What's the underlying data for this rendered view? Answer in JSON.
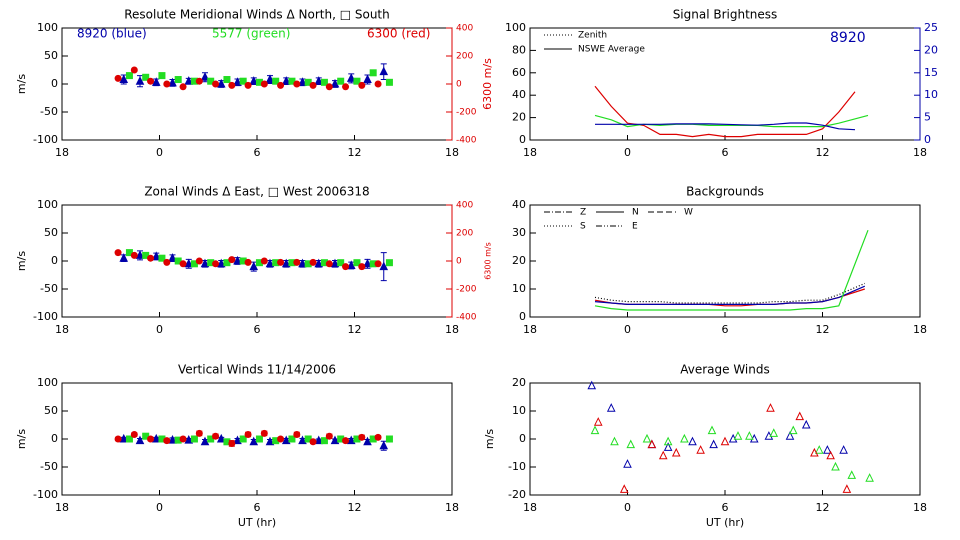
{
  "chart_data": [
    {
      "type": "wind",
      "title": "Resolute Meridional Winds Δ North, □ South",
      "ylabel": "m/s",
      "y2label": "6300 m/s",
      "y2color": "#dd0000",
      "annotations": [
        {
          "text": "8920 (blue)",
          "color": "#0000aa"
        },
        {
          "text": "5577 (green)",
          "color": "#22dd22"
        },
        {
          "text": "6300 (red)",
          "color": "#dd0000"
        }
      ],
      "xlim": [
        -6,
        18
      ],
      "xticks": [
        {
          "value": -6,
          "label": "18"
        },
        0,
        6,
        12,
        18
      ],
      "ylim": [
        -100,
        100
      ],
      "yticks": [
        -100,
        -50,
        0,
        50,
        100
      ],
      "y2lim": [
        -400,
        400
      ],
      "y2ticks": [
        -400,
        -200,
        0,
        200,
        400
      ],
      "series": [
        {
          "color": "#0000aa",
          "marker": "triangle",
          "x": [
            -2.2,
            -1.2,
            -0.2,
            0.8,
            1.8,
            2.8,
            3.8,
            4.8,
            5.8,
            6.8,
            7.8,
            8.8,
            9.8,
            10.8,
            11.8,
            12.8,
            13.8
          ],
          "values": [
            8,
            5,
            3,
            2,
            5,
            12,
            0,
            3,
            5,
            8,
            5,
            3,
            5,
            0,
            10,
            8,
            22
          ],
          "errors": [
            8,
            10,
            6,
            6,
            5,
            8,
            6,
            6,
            6,
            7,
            6,
            6,
            6,
            6,
            8,
            8,
            14
          ]
        },
        {
          "color": "#22dd22",
          "marker": "square",
          "x": [
            -1.85,
            -0.85,
            0.15,
            1.15,
            2.15,
            3.15,
            4.15,
            5.15,
            6.15,
            7.15,
            8.15,
            9.15,
            10.15,
            11.15,
            12.15,
            13.15,
            14.15
          ],
          "values": [
            15,
            12,
            15,
            8,
            5,
            5,
            8,
            5,
            3,
            5,
            5,
            3,
            3,
            5,
            5,
            20,
            3
          ]
        },
        {
          "color": "#dd0000",
          "marker": "circle",
          "axis": "y2",
          "x": [
            -2.55,
            -1.55,
            -0.55,
            0.45,
            1.45,
            2.45,
            3.45,
            4.45,
            5.45,
            6.45,
            7.45,
            8.45,
            9.45,
            10.45,
            11.45,
            12.45,
            13.45
          ],
          "values": [
            40,
            100,
            20,
            0,
            -20,
            20,
            0,
            -10,
            -10,
            0,
            -10,
            0,
            -10,
            -20,
            -20,
            -10,
            0
          ]
        }
      ]
    },
    {
      "type": "line",
      "title": "Signal Brightness",
      "y2color": "#0000aa",
      "annotations": [
        {
          "text": "8920",
          "color": "#0000aa"
        }
      ],
      "legend": [
        {
          "name": "Zenith",
          "dash": "1,2"
        },
        {
          "name": "NSWE Average",
          "dash": ""
        }
      ],
      "xlim": [
        -6,
        18
      ],
      "xticks": [
        {
          "value": -6,
          "label": "18"
        },
        0,
        6,
        12,
        18
      ],
      "ylim": [
        0,
        100
      ],
      "yticks": [
        0,
        20,
        40,
        60,
        80,
        100
      ],
      "y2lim": [
        0,
        25
      ],
      "y2ticks": [
        0,
        5,
        10,
        15,
        20,
        25
      ],
      "series": [
        {
          "color": "#dd0000",
          "x": [
            -2,
            -1,
            0,
            1,
            2,
            3,
            4,
            5,
            6,
            7,
            8,
            9,
            10,
            11,
            12,
            13,
            14
          ],
          "values": [
            48,
            30,
            15,
            13,
            5,
            5,
            3,
            5,
            3,
            3,
            5,
            5,
            5,
            5,
            10,
            25,
            43
          ]
        },
        {
          "color": "#22dd22",
          "x": [
            -2,
            -1,
            0,
            1,
            2,
            3,
            4,
            5,
            6,
            7,
            8,
            9,
            10,
            11,
            12,
            13,
            14.8
          ],
          "values": [
            22,
            18,
            12,
            14,
            13,
            14,
            14,
            13,
            13,
            13,
            13,
            12,
            12,
            12,
            12,
            15,
            22
          ]
        },
        {
          "color": "#0000aa",
          "axis": "y2",
          "x": [
            -2,
            -1,
            0,
            1,
            2,
            3,
            4,
            5,
            6,
            7,
            8,
            9,
            10,
            11,
            12,
            13,
            14
          ],
          "values": [
            3.5,
            3.5,
            3.5,
            3.5,
            3.5,
            3.6,
            3.6,
            3.6,
            3.5,
            3.4,
            3.3,
            3.5,
            3.8,
            3.8,
            3.3,
            2.5,
            2.3
          ]
        }
      ]
    },
    {
      "type": "wind",
      "title": "Zonal Winds Δ East, □ West 2006318",
      "ylabel": "m/s",
      "y2label": "6300 m/s",
      "y2color": "#dd0000",
      "xlim": [
        -6,
        18
      ],
      "xticks": [
        {
          "value": -6,
          "label": "18"
        },
        0,
        6,
        12,
        18
      ],
      "ylim": [
        -100,
        100
      ],
      "yticks": [
        -100,
        -50,
        0,
        50,
        100
      ],
      "y2lim": [
        -400,
        400
      ],
      "y2ticks": [
        -400,
        -200,
        0,
        200,
        400
      ],
      "series": [
        {
          "color": "#0000aa",
          "marker": "triangle",
          "x": [
            -2.2,
            -1.2,
            -0.2,
            0.8,
            1.8,
            2.8,
            3.8,
            4.8,
            5.8,
            6.8,
            7.8,
            8.8,
            9.8,
            10.8,
            11.8,
            12.8,
            13.8
          ],
          "values": [
            5,
            10,
            8,
            5,
            -5,
            -5,
            -5,
            0,
            -10,
            -5,
            -5,
            -5,
            -5,
            -5,
            -8,
            -5,
            -10
          ],
          "errors": [
            6,
            8,
            6,
            6,
            8,
            6,
            6,
            6,
            8,
            6,
            6,
            6,
            6,
            6,
            6,
            8,
            25
          ]
        },
        {
          "color": "#22dd22",
          "marker": "square",
          "x": [
            -1.85,
            -0.85,
            0.15,
            1.15,
            2.15,
            3.15,
            4.15,
            5.15,
            6.15,
            7.15,
            8.15,
            9.15,
            10.15,
            11.15,
            12.15,
            13.15,
            14.15
          ],
          "values": [
            15,
            10,
            5,
            0,
            -5,
            -3,
            -3,
            0,
            -3,
            -3,
            -3,
            -5,
            -3,
            -3,
            -3,
            -5,
            -3
          ]
        },
        {
          "color": "#dd0000",
          "marker": "circle",
          "axis": "y2",
          "x": [
            -2.55,
            -1.55,
            -0.55,
            0.45,
            1.45,
            2.45,
            3.45,
            4.45,
            5.45,
            6.45,
            7.45,
            8.45,
            9.45,
            10.45,
            11.45,
            12.45,
            13.45
          ],
          "values": [
            60,
            40,
            20,
            -10,
            -20,
            0,
            -20,
            10,
            -10,
            0,
            -10,
            -10,
            -10,
            -20,
            -40,
            -40,
            -20
          ]
        }
      ]
    },
    {
      "type": "line",
      "title": "Backgrounds",
      "legend": [
        {
          "name": "Z",
          "dash": "6,2,1,2"
        },
        {
          "name": "N",
          "dash": ""
        },
        {
          "name": "W",
          "dash": "6,3"
        },
        {
          "name": "S",
          "dash": "1,2"
        },
        {
          "name": "E",
          "dash": "6,2,1,2,1,2"
        }
      ],
      "xlim": [
        -6,
        18
      ],
      "xticks": [
        {
          "value": -6,
          "label": "18"
        },
        0,
        6,
        12,
        18
      ],
      "ylim": [
        0,
        40
      ],
      "yticks": [
        0,
        10,
        20,
        30,
        40
      ],
      "series": [
        {
          "color": "#000000",
          "dash": "1,2",
          "x": [
            -2,
            -1,
            0,
            1,
            2,
            3,
            4,
            5,
            6,
            7,
            8,
            9,
            10,
            11,
            12,
            13,
            14.6
          ],
          "values": [
            7,
            6,
            5.5,
            5.5,
            5.5,
            5,
            5,
            5,
            5,
            5,
            5,
            5.5,
            5.5,
            6,
            6,
            8,
            12
          ]
        },
        {
          "color": "#dd0000",
          "x": [
            -2,
            -1,
            0,
            1,
            2,
            3,
            4,
            5,
            6,
            7,
            8,
            9,
            10,
            11,
            12,
            13,
            14.6
          ],
          "values": [
            6,
            5,
            4.5,
            4.5,
            4.5,
            4.5,
            4.5,
            4.5,
            4,
            4,
            4.5,
            4.5,
            5,
            5,
            5.5,
            7,
            10
          ]
        },
        {
          "color": "#0000aa",
          "x": [
            -2,
            -1,
            0,
            1,
            2,
            3,
            4,
            5,
            6,
            7,
            8,
            9,
            10,
            11,
            12,
            13,
            14.6
          ],
          "values": [
            5.5,
            5,
            4.5,
            4.5,
            4.5,
            4.5,
            4.5,
            4.5,
            4.5,
            4.5,
            4.5,
            4.5,
            5,
            5,
            5.5,
            7,
            11
          ]
        },
        {
          "color": "#22dd22",
          "x": [
            -2,
            -1,
            0,
            1,
            2,
            3,
            4,
            5,
            6,
            7,
            8,
            9,
            10,
            11,
            12,
            13,
            14.8
          ],
          "values": [
            4,
            3,
            2.5,
            2.5,
            2.5,
            2.5,
            2.5,
            2.5,
            2.5,
            2.5,
            2.5,
            2.5,
            2.5,
            3,
            3,
            4,
            31
          ]
        }
      ]
    },
    {
      "type": "wind",
      "title": "Vertical Winds 11/14/2006",
      "ylabel": "m/s",
      "xlabel": "UT (hr)",
      "xlim": [
        -6,
        18
      ],
      "xticks": [
        {
          "value": -6,
          "label": "18"
        },
        0,
        6,
        12,
        18
      ],
      "ylim": [
        -100,
        100
      ],
      "yticks": [
        -100,
        -50,
        0,
        50,
        100
      ],
      "series": [
        {
          "color": "#0000aa",
          "marker": "triangle",
          "x": [
            -2.2,
            -1.2,
            -0.2,
            0.8,
            1.8,
            2.8,
            3.8,
            4.8,
            5.8,
            6.8,
            7.8,
            8.8,
            9.8,
            10.8,
            11.8,
            12.8,
            13.8
          ],
          "values": [
            0,
            -3,
            0,
            -2,
            -2,
            -5,
            0,
            -3,
            -5,
            -5,
            -3,
            -3,
            -3,
            -3,
            -3,
            -5,
            -12
          ],
          "errors": [
            3,
            4,
            3,
            4,
            3,
            4,
            3,
            4,
            4,
            4,
            4,
            4,
            3,
            3,
            4,
            4,
            8
          ]
        },
        {
          "color": "#22dd22",
          "marker": "square",
          "x": [
            -1.85,
            -0.85,
            0.15,
            1.15,
            2.15,
            3.15,
            4.15,
            5.15,
            6.15,
            7.15,
            8.15,
            9.15,
            10.15,
            11.15,
            12.15,
            13.15,
            14.15
          ],
          "values": [
            0,
            5,
            0,
            -2,
            0,
            0,
            -5,
            0,
            0,
            -3,
            0,
            0,
            -3,
            0,
            0,
            0,
            0
          ]
        },
        {
          "color": "#dd0000",
          "marker": "circle",
          "x": [
            -2.55,
            -1.55,
            -0.55,
            0.45,
            1.45,
            2.45,
            3.45,
            4.45,
            5.45,
            6.45,
            7.45,
            8.45,
            9.45,
            10.45,
            11.45,
            12.45,
            13.45
          ],
          "values": [
            0,
            8,
            0,
            -3,
            0,
            10,
            5,
            -8,
            8,
            10,
            0,
            8,
            -5,
            5,
            -3,
            3,
            3
          ],
          "errors": [
            3,
            3,
            3,
            3,
            3,
            4,
            4,
            5,
            4,
            4,
            3,
            4,
            3,
            4,
            3,
            4,
            3
          ]
        }
      ]
    },
    {
      "type": "scatter",
      "title": "Average Winds",
      "ylabel": "m/s",
      "xlabel": "UT (hr)",
      "xlim": [
        -6,
        18
      ],
      "xticks": [
        {
          "value": -6,
          "label": "18"
        },
        0,
        6,
        12,
        18
      ],
      "ylim": [
        -20,
        20
      ],
      "yticks": [
        -20,
        -10,
        0,
        10,
        20
      ],
      "series": [
        {
          "color": "#0000aa",
          "marker": "triangle",
          "x": [
            -2.2,
            -1,
            0,
            1.5,
            2.5,
            4,
            5.3,
            6.5,
            7.8,
            8.7,
            10,
            11,
            12.3,
            13.3
          ],
          "values": [
            19,
            11,
            -9,
            -2,
            -3,
            -1,
            -2,
            0,
            0,
            1,
            1,
            5,
            -4,
            -4
          ]
        },
        {
          "color": "#22dd22",
          "marker": "triangle",
          "x": [
            -2,
            -0.8,
            0.2,
            1.2,
            2.5,
            3.5,
            5.2,
            6.8,
            7.5,
            9,
            10.2,
            11.8,
            12.8,
            13.8,
            14.9
          ],
          "values": [
            3,
            -1,
            -2,
            0,
            -1,
            0,
            3,
            1,
            1,
            2,
            3,
            -4,
            -10,
            -13,
            -14
          ]
        },
        {
          "color": "#dd0000",
          "marker": "triangle",
          "x": [
            -1.8,
            -0.2,
            1.5,
            2.2,
            3,
            4.5,
            6,
            8.8,
            10.6,
            11.5,
            12.5,
            13.5
          ],
          "values": [
            6,
            -18,
            -2,
            -6,
            -5,
            -4,
            -1,
            11,
            8,
            -5,
            -6,
            -18
          ]
        }
      ]
    }
  ]
}
